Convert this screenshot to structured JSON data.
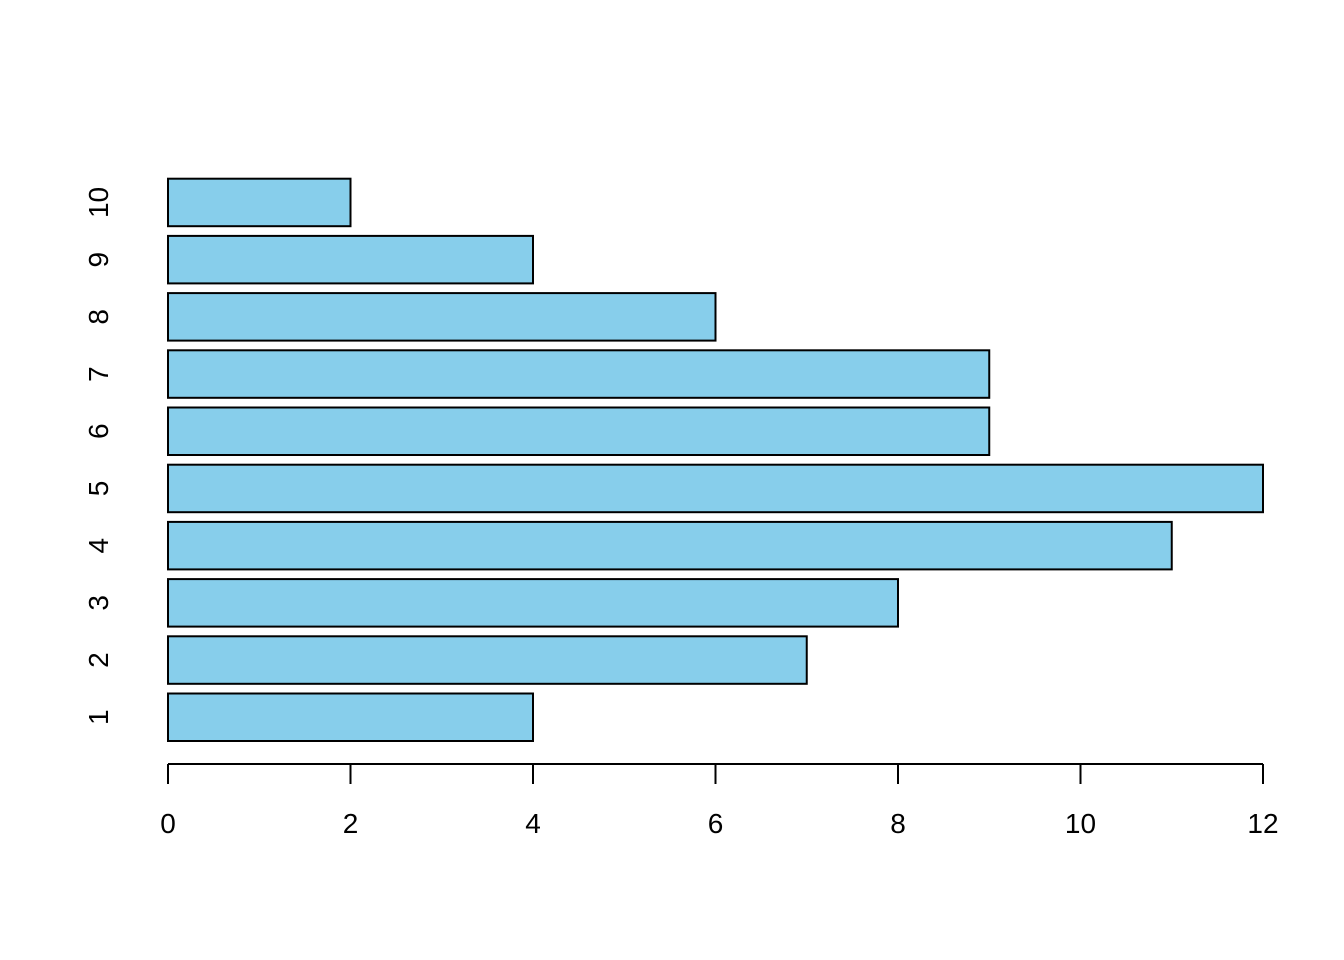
{
  "chart_data": {
    "type": "bar",
    "orientation": "horizontal",
    "categories": [
      "1",
      "2",
      "3",
      "4",
      "5",
      "6",
      "7",
      "8",
      "9",
      "10"
    ],
    "values": [
      4,
      7,
      8,
      11,
      12,
      9,
      9,
      6,
      4,
      2
    ],
    "title": "",
    "xlabel": "",
    "ylabel": "",
    "xlim": [
      0,
      12
    ],
    "x_ticks": [
      0,
      2,
      4,
      6,
      8,
      10,
      12
    ],
    "bar_color": "#87CEEB",
    "bar_border_color": "#000000",
    "grid": false,
    "legend": "none"
  }
}
